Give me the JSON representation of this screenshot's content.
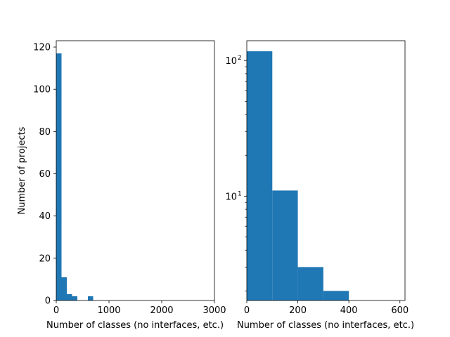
{
  "chart_data": [
    {
      "type": "bar",
      "title": "",
      "xlabel": "Number of classes (no interfaces, etc.)",
      "ylabel": "Number of projects",
      "xlim": [
        0,
        3000
      ],
      "ylim": [
        0,
        123
      ],
      "yscale": "linear",
      "xticks": [
        "0",
        "1000",
        "2000",
        "3000"
      ],
      "yticks": [
        "0",
        "20",
        "40",
        "60",
        "80",
        "100",
        "120"
      ],
      "bin_width": 100,
      "bins": [
        {
          "x0": 0,
          "x1": 100,
          "count": 117
        },
        {
          "x0": 100,
          "x1": 200,
          "count": 11
        },
        {
          "x0": 200,
          "x1": 300,
          "count": 3
        },
        {
          "x0": 300,
          "x1": 400,
          "count": 2
        },
        {
          "x0": 600,
          "x1": 700,
          "count": 2
        }
      ],
      "color": "#1f77b4",
      "grid": false
    },
    {
      "type": "bar",
      "title": "",
      "xlabel": "Number of classes (no interfaces, etc.)",
      "ylabel": "",
      "xlim": [
        0,
        620
      ],
      "ylim": [
        1.7,
        140
      ],
      "yscale": "log",
      "xticks": [
        "0",
        "200",
        "400",
        "600"
      ],
      "yticks": [
        "10",
        "10"
      ],
      "ytick_exponents": [
        "1",
        "2"
      ],
      "bin_width": 100,
      "bins": [
        {
          "x0": 0,
          "x1": 100,
          "count": 117
        },
        {
          "x0": 100,
          "x1": 200,
          "count": 11
        },
        {
          "x0": 200,
          "x1": 300,
          "count": 3
        },
        {
          "x0": 300,
          "x1": 400,
          "count": 2
        }
      ],
      "color": "#1f77b4",
      "grid": false
    }
  ]
}
